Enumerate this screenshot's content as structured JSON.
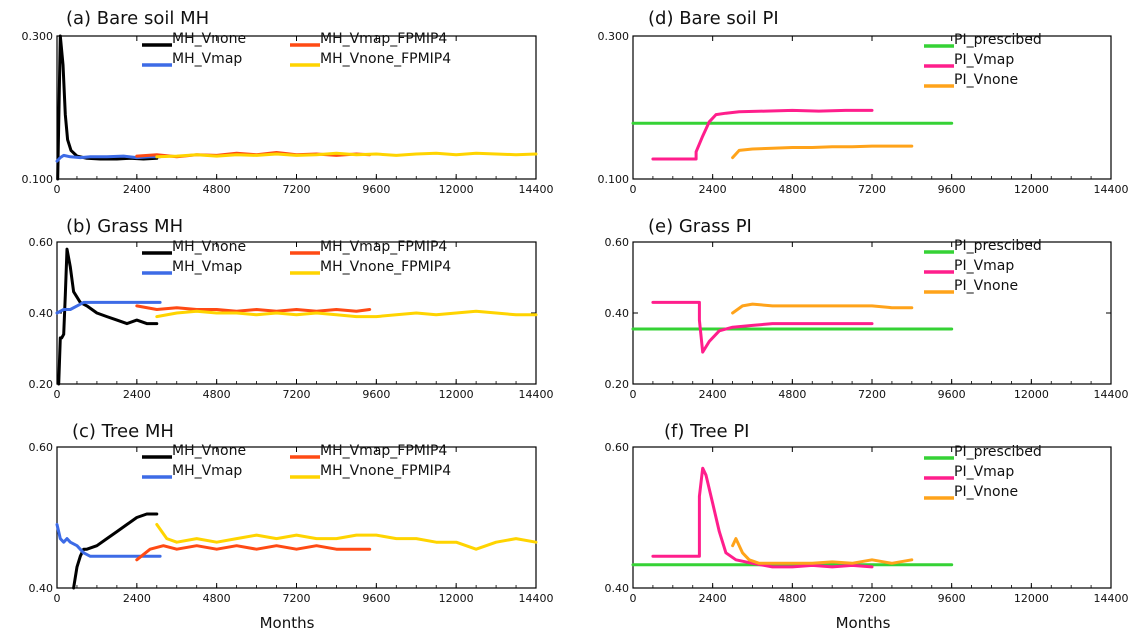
{
  "colors": {
    "MH_Vnone": "#000000",
    "MH_Vmap": "#3d6be6",
    "MH_Vmap_FPMIP4": "#ff4a14",
    "MH_Vnone_FPMIP4": "#ffd400",
    "PI_prescibed": "#35d235",
    "PI_Vmap": "#ff1e8c",
    "PI_Vnone": "#ffa31a"
  },
  "xlabel": "Months",
  "chart_data": [
    {
      "type": "line",
      "title": "(a) Bare soil MH",
      "xlim": [
        0,
        14400
      ],
      "x_ticks": [
        "0",
        "2400",
        "4800",
        "7200",
        "9600",
        "12000",
        "14400"
      ],
      "ylim": [
        0.1,
        0.3
      ],
      "y_ticks": [
        "0.100",
        "0.300"
      ],
      "legend_layout": "two-column",
      "series": [
        {
          "name": "MH_Vnone",
          "x": [
            20,
            100,
            180,
            250,
            320,
            420,
            600,
            900,
            1300,
            1800,
            2200,
            2600,
            3000
          ],
          "y": [
            0.1,
            0.3,
            0.26,
            0.19,
            0.155,
            0.14,
            0.132,
            0.129,
            0.128,
            0.128,
            0.129,
            0.128,
            0.129
          ]
        },
        {
          "name": "MH_Vmap",
          "x": [
            0,
            100,
            200,
            400,
            700,
            1000,
            1500,
            2000,
            2400,
            2800,
            3100
          ],
          "y": [
            0.125,
            0.13,
            0.133,
            0.131,
            0.13,
            0.131,
            0.131,
            0.132,
            0.13,
            0.131,
            0.131
          ]
        },
        {
          "name": "MH_Vmap_FPMIP4",
          "x": [
            2400,
            3000,
            3600,
            4200,
            4800,
            5400,
            6000,
            6600,
            7200,
            7800,
            8400,
            9000,
            9400
          ],
          "y": [
            0.132,
            0.134,
            0.131,
            0.134,
            0.133,
            0.136,
            0.134,
            0.137,
            0.134,
            0.135,
            0.133,
            0.135,
            0.134
          ]
        },
        {
          "name": "MH_Vnone_FPMIP4",
          "x": [
            3000,
            3600,
            4200,
            4800,
            5400,
            6000,
            6600,
            7200,
            7800,
            8400,
            9000,
            9600,
            10200,
            10800,
            11400,
            12000,
            12600,
            13200,
            13800,
            14400
          ],
          "y": [
            0.131,
            0.132,
            0.134,
            0.132,
            0.134,
            0.133,
            0.135,
            0.133,
            0.134,
            0.136,
            0.134,
            0.135,
            0.133,
            0.135,
            0.136,
            0.134,
            0.136,
            0.135,
            0.134,
            0.135
          ]
        }
      ]
    },
    {
      "type": "line",
      "title": "(b) Grass MH",
      "xlim": [
        0,
        14400
      ],
      "x_ticks": [
        "0",
        "2400",
        "4800",
        "7200",
        "9600",
        "12000",
        "14400"
      ],
      "ylim": [
        0.2,
        0.6
      ],
      "y_ticks": [
        "0.20",
        "0.40",
        "0.60"
      ],
      "legend_layout": "two-column",
      "series": [
        {
          "name": "MH_Vnone",
          "x": [
            50,
            100,
            140,
            200,
            250,
            300,
            400,
            500,
            700,
            900,
            1200,
            1500,
            1800,
            2100,
            2400,
            2700,
            3000
          ],
          "y": [
            0.2,
            0.33,
            0.33,
            0.34,
            0.45,
            0.58,
            0.53,
            0.46,
            0.43,
            0.42,
            0.4,
            0.39,
            0.38,
            0.37,
            0.38,
            0.37,
            0.37
          ]
        },
        {
          "name": "MH_Vmap",
          "x": [
            0,
            200,
            400,
            600,
            800,
            1000,
            1400,
            2000,
            2400,
            2800,
            3100
          ],
          "y": [
            0.4,
            0.41,
            0.41,
            0.42,
            0.43,
            0.43,
            0.43,
            0.43,
            0.43,
            0.43,
            0.43
          ]
        },
        {
          "name": "MH_Vmap_FPMIP4",
          "x": [
            2400,
            3000,
            3600,
            4200,
            4800,
            5400,
            6000,
            6600,
            7200,
            7800,
            8400,
            9000,
            9400
          ],
          "y": [
            0.42,
            0.41,
            0.415,
            0.41,
            0.41,
            0.405,
            0.41,
            0.405,
            0.41,
            0.405,
            0.41,
            0.405,
            0.41
          ]
        },
        {
          "name": "MH_Vnone_FPMIP4",
          "x": [
            3000,
            3600,
            4200,
            4800,
            5400,
            6000,
            6600,
            7200,
            7800,
            8400,
            9000,
            9600,
            10200,
            10800,
            11400,
            12000,
            12600,
            13200,
            13800,
            14400
          ],
          "y": [
            0.39,
            0.4,
            0.405,
            0.4,
            0.4,
            0.395,
            0.4,
            0.395,
            0.4,
            0.395,
            0.39,
            0.39,
            0.395,
            0.4,
            0.395,
            0.4,
            0.405,
            0.4,
            0.395,
            0.395
          ]
        }
      ]
    },
    {
      "type": "line",
      "title": "(c) Tree MH",
      "xlim": [
        0,
        14400
      ],
      "x_ticks": [
        "0",
        "2400",
        "4800",
        "7200",
        "9600",
        "12000",
        "14400"
      ],
      "ylim": [
        0.4,
        0.6
      ],
      "y_ticks": [
        "0.40",
        "0.60"
      ],
      "legend_layout": "two-column",
      "series": [
        {
          "name": "MH_Vnone",
          "x": [
            500,
            550,
            600,
            700,
            800,
            900,
            1200,
            1500,
            1800,
            2100,
            2400,
            2700,
            3000
          ],
          "y": [
            0.4,
            0.415,
            0.43,
            0.445,
            0.455,
            0.455,
            0.46,
            0.47,
            0.48,
            0.49,
            0.5,
            0.505,
            0.505
          ]
        },
        {
          "name": "MH_Vmap",
          "x": [
            0,
            100,
            200,
            300,
            400,
            600,
            800,
            1000,
            1400,
            2000,
            2400,
            2800,
            3100
          ],
          "y": [
            0.49,
            0.47,
            0.465,
            0.47,
            0.465,
            0.46,
            0.45,
            0.445,
            0.445,
            0.445,
            0.445,
            0.445,
            0.445
          ]
        },
        {
          "name": "MH_Vmap_FPMIP4",
          "x": [
            2400,
            2800,
            3200,
            3600,
            4200,
            4800,
            5400,
            6000,
            6600,
            7200,
            7800,
            8400,
            9000,
            9400
          ],
          "y": [
            0.44,
            0.455,
            0.46,
            0.455,
            0.46,
            0.455,
            0.46,
            0.455,
            0.46,
            0.455,
            0.46,
            0.455,
            0.455,
            0.455
          ]
        },
        {
          "name": "MH_Vnone_FPMIP4",
          "x": [
            3000,
            3300,
            3600,
            4200,
            4800,
            5400,
            6000,
            6600,
            7200,
            7800,
            8400,
            9000,
            9600,
            10200,
            10800,
            11400,
            12000,
            12600,
            13200,
            13800,
            14400
          ],
          "y": [
            0.49,
            0.47,
            0.465,
            0.47,
            0.465,
            0.47,
            0.475,
            0.47,
            0.475,
            0.47,
            0.47,
            0.475,
            0.475,
            0.47,
            0.47,
            0.465,
            0.465,
            0.455,
            0.465,
            0.47,
            0.465
          ]
        }
      ]
    },
    {
      "type": "line",
      "title": "(d) Bare soil PI",
      "xlim": [
        0,
        14400
      ],
      "x_ticks": [
        "0",
        "2400",
        "4800",
        "7200",
        "9600",
        "12000",
        "14400"
      ],
      "ylim": [
        0.1,
        0.3
      ],
      "y_ticks": [
        "0.100",
        "0.300"
      ],
      "legend_layout": "one-column",
      "series": [
        {
          "name": "PI_prescibed",
          "x": [
            0,
            9600
          ],
          "y": [
            0.178,
            0.178
          ]
        },
        {
          "name": "PI_Vmap",
          "x": [
            600,
            1900,
            1900,
            2100,
            2300,
            2500,
            2800,
            3200,
            4000,
            4800,
            5600,
            6400,
            7200
          ],
          "y": [
            0.128,
            0.128,
            0.138,
            0.16,
            0.18,
            0.19,
            0.192,
            0.194,
            0.195,
            0.196,
            0.195,
            0.196,
            0.196
          ]
        },
        {
          "name": "PI_Vnone",
          "x": [
            3000,
            3200,
            3600,
            4200,
            4800,
            5400,
            6000,
            6600,
            7200,
            7800,
            8400
          ],
          "y": [
            0.13,
            0.14,
            0.142,
            0.143,
            0.144,
            0.144,
            0.145,
            0.145,
            0.146,
            0.146,
            0.146
          ]
        }
      ]
    },
    {
      "type": "line",
      "title": "(e) Grass PI",
      "xlim": [
        0,
        14400
      ],
      "x_ticks": [
        "0",
        "2400",
        "4800",
        "7200",
        "9600",
        "12000",
        "14400"
      ],
      "ylim": [
        0.2,
        0.6
      ],
      "y_ticks": [
        "0.20",
        "0.40",
        "0.60"
      ],
      "legend_layout": "one-column",
      "series": [
        {
          "name": "PI_prescibed",
          "x": [
            0,
            9600
          ],
          "y": [
            0.355,
            0.355
          ]
        },
        {
          "name": "PI_Vmap",
          "x": [
            600,
            2000,
            2000,
            2100,
            2300,
            2600,
            3000,
            3600,
            4200,
            4800,
            5400,
            6000,
            6600,
            7200
          ],
          "y": [
            0.43,
            0.43,
            0.38,
            0.29,
            0.32,
            0.35,
            0.36,
            0.365,
            0.37,
            0.37,
            0.37,
            0.37,
            0.37,
            0.37
          ]
        },
        {
          "name": "PI_Vnone",
          "x": [
            3000,
            3300,
            3600,
            4200,
            4800,
            5400,
            6000,
            6600,
            7200,
            7800,
            8400
          ],
          "y": [
            0.4,
            0.42,
            0.425,
            0.42,
            0.42,
            0.42,
            0.42,
            0.42,
            0.42,
            0.415,
            0.415
          ]
        }
      ]
    },
    {
      "type": "line",
      "title": "(f) Tree PI",
      "xlim": [
        0,
        14400
      ],
      "x_ticks": [
        "0",
        "2400",
        "4800",
        "7200",
        "9600",
        "12000",
        "14400"
      ],
      "ylim": [
        0.4,
        0.6
      ],
      "y_ticks": [
        "0.40",
        "0.60"
      ],
      "legend_layout": "one-column",
      "series": [
        {
          "name": "PI_prescibed",
          "x": [
            0,
            9600
          ],
          "y": [
            0.433,
            0.433
          ]
        },
        {
          "name": "PI_Vmap",
          "x": [
            600,
            2000,
            2000,
            2100,
            2200,
            2400,
            2600,
            2800,
            3100,
            3600,
            4200,
            4800,
            5400,
            6000,
            6600,
            7200
          ],
          "y": [
            0.445,
            0.445,
            0.53,
            0.57,
            0.56,
            0.52,
            0.48,
            0.45,
            0.44,
            0.435,
            0.43,
            0.43,
            0.432,
            0.43,
            0.432,
            0.43
          ]
        },
        {
          "name": "PI_Vnone",
          "x": [
            3000,
            3100,
            3300,
            3500,
            3800,
            4200,
            4800,
            5400,
            6000,
            6600,
            7200,
            7800,
            8400
          ],
          "y": [
            0.46,
            0.47,
            0.45,
            0.44,
            0.435,
            0.435,
            0.435,
            0.435,
            0.437,
            0.435,
            0.44,
            0.435,
            0.44
          ]
        }
      ]
    }
  ]
}
